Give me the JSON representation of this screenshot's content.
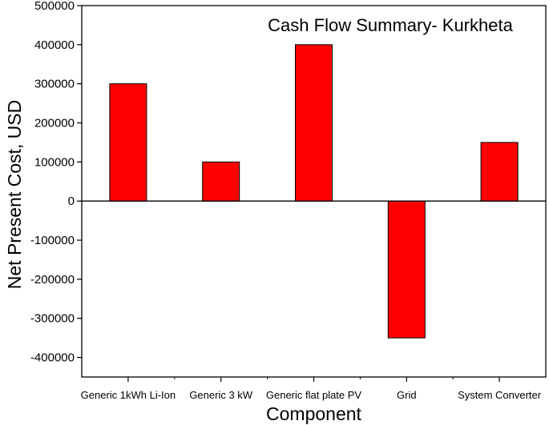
{
  "chart_data": {
    "type": "bar",
    "title": "Cash Flow Summary- Kurkheta",
    "xlabel": "Component",
    "ylabel": "Net Present Cost, USD",
    "categories": [
      "Generic 1kWh Li-Ion",
      "Generic 3 kW",
      "Generic flat plate PV",
      "Grid",
      "System Converter"
    ],
    "values": [
      300000,
      100000,
      400000,
      -350000,
      150000
    ],
    "ylim": [
      -450000,
      500000
    ],
    "yticks": [
      500000,
      400000,
      300000,
      200000,
      100000,
      0,
      -100000,
      -200000,
      -300000,
      -400000
    ],
    "ytick_labels": [
      "500000",
      "400000",
      "300000",
      "200000",
      "100000",
      "0",
      "-100000",
      "-200000",
      "-300000",
      "-400000"
    ],
    "bar_color": "#ff0000",
    "grid": false,
    "legend": "none"
  }
}
